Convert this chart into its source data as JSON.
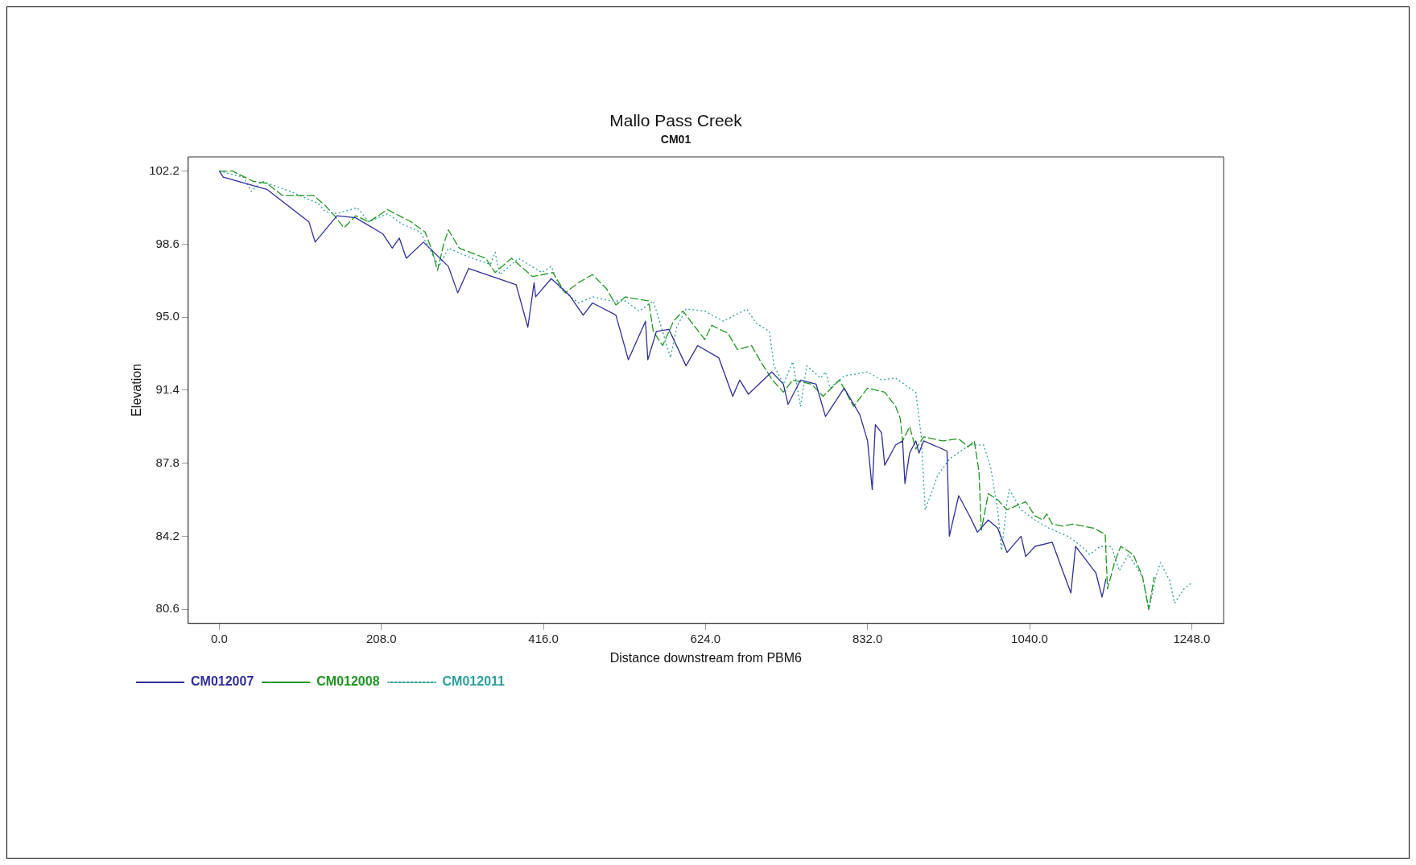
{
  "chart_data": {
    "type": "line",
    "title": "Mallo Pass Creek",
    "subtitle": "CM01",
    "xlabel": "Distance downstream from PBM6",
    "ylabel": "Elevation",
    "xlim": [
      -40,
      1289
    ],
    "ylim": [
      79.9,
      102.9
    ],
    "xticks": [
      {
        "value": 0,
        "label": "0.0"
      },
      {
        "value": 208,
        "label": "208.0"
      },
      {
        "value": 416,
        "label": "416.0"
      },
      {
        "value": 624,
        "label": "624.0"
      },
      {
        "value": 832,
        "label": "832.0"
      },
      {
        "value": 1040,
        "label": "1040.0"
      },
      {
        "value": 1248,
        "label": "1248.0"
      }
    ],
    "yticks": [
      80.6,
      84.2,
      87.8,
      91.4,
      {
        "value": 95,
        "label": "95.0"
      },
      98.6,
      102.2
    ],
    "grid": false,
    "legend": "bottom",
    "marker": "none",
    "series": [
      {
        "name": "CM012007",
        "color": "#2e2e9c",
        "line_style": "solid",
        "x": [
          0,
          5,
          61,
          115,
          123,
          151,
          175,
          210,
          222,
          231,
          240,
          262,
          294,
          306,
          320,
          381,
          396,
          404,
          406,
          426,
          449,
          467,
          479,
          509,
          525,
          547,
          550,
          561,
          577,
          599,
          614,
          641,
          659,
          668,
          679,
          709,
          724,
          730,
          746,
          766,
          778,
          802,
          822,
          832,
          838,
          842,
          850,
          854,
          868,
          877,
          880,
          886,
          894,
          898,
          904,
          934,
          937,
          949,
          963,
          973,
          987,
          999,
          1011,
          1029,
          1035,
          1047,
          1069,
          1093,
          1099,
          1107,
          1125,
          1133,
          1138
        ],
        "values": [
          102.2,
          101.9,
          101.3,
          99.7,
          98.7,
          100.0,
          99.9,
          99.1,
          98.4,
          98.9,
          97.9,
          98.7,
          97.5,
          96.2,
          97.4,
          96.6,
          94.5,
          96.7,
          96.0,
          96.9,
          96.1,
          95.1,
          95.7,
          95.1,
          92.9,
          94.8,
          92.9,
          94.3,
          94.4,
          92.6,
          93.6,
          93.0,
          91.1,
          91.9,
          91.2,
          92.3,
          91.7,
          90.7,
          91.9,
          91.7,
          90.1,
          91.5,
          90.2,
          88.9,
          86.5,
          89.7,
          89.3,
          87.7,
          88.7,
          88.9,
          86.8,
          88.3,
          88.9,
          88.3,
          88.9,
          88.4,
          84.2,
          86.2,
          85.2,
          84.4,
          85.0,
          84.6,
          83.4,
          84.2,
          83.2,
          83.7,
          83.9,
          81.4,
          83.7,
          83.3,
          82.4,
          81.2,
          82.1
        ]
      },
      {
        "name": "CM012008",
        "color": "#1f951f",
        "line_style": "dashed",
        "x": [
          0,
          17,
          43,
          61,
          81,
          94,
          121,
          136,
          148,
          160,
          175,
          192,
          216,
          246,
          264,
          273,
          280,
          288,
          294,
          308,
          342,
          354,
          375,
          402,
          428,
          444,
          461,
          479,
          497,
          509,
          521,
          551,
          557,
          569,
          583,
          595,
          611,
          623,
          632,
          653,
          665,
          683,
          695,
          710,
          724,
          736,
          760,
          775,
          796,
          814,
          832,
          854,
          868,
          874,
          877,
          886,
          894,
          904,
          928,
          949,
          961,
          969,
          975,
          978,
          987,
          999,
          1011,
          1035,
          1047,
          1057,
          1062,
          1069,
          1083,
          1095,
          1109,
          1122,
          1137,
          1140,
          1149,
          1157,
          1173,
          1185,
          1193,
          1200
        ],
        "values": [
          102.2,
          102.2,
          101.7,
          101.6,
          101.0,
          101.0,
          101.0,
          100.5,
          100.0,
          99.4,
          100.0,
          99.7,
          100.3,
          99.7,
          99.2,
          98.3,
          97.3,
          98.6,
          99.3,
          98.4,
          97.9,
          97.2,
          97.9,
          97.0,
          97.2,
          96.2,
          96.7,
          97.1,
          96.4,
          95.6,
          96.0,
          95.8,
          94.3,
          93.6,
          94.8,
          95.3,
          94.5,
          93.9,
          94.6,
          94.2,
          93.4,
          93.6,
          92.8,
          91.9,
          91.3,
          91.9,
          91.7,
          91.1,
          91.9,
          90.6,
          91.5,
          91.3,
          90.6,
          90.0,
          88.9,
          89.6,
          88.5,
          89.1,
          88.9,
          89.0,
          88.6,
          88.9,
          87.4,
          84.5,
          86.3,
          86.0,
          85.5,
          85.9,
          85.2,
          85.0,
          85.3,
          84.8,
          84.7,
          84.8,
          84.7,
          84.6,
          84.3,
          81.6,
          82.9,
          83.7,
          83.3,
          82.2,
          80.6,
          82.2
        ]
      },
      {
        "name": "CM012011",
        "color": "#2a9d9d",
        "line_style": "dotted",
        "x": [
          0,
          31,
          41,
          55,
          91,
          127,
          136,
          151,
          177,
          192,
          216,
          234,
          258,
          282,
          294,
          318,
          348,
          354,
          360,
          384,
          414,
          426,
          438,
          461,
          479,
          503,
          521,
          539,
          557,
          569,
          579,
          587,
          599,
          623,
          647,
          677,
          689,
          706,
          712,
          724,
          736,
          746,
          754,
          772,
          778,
          784,
          802,
          832,
          850,
          868,
          886,
          894,
          901,
          906,
          922,
          937,
          963,
          981,
          990,
          999,
          1004,
          1011,
          1014,
          1029,
          1047,
          1065,
          1089,
          1107,
          1117,
          1131,
          1145,
          1155,
          1167,
          1185,
          1193,
          1202,
          1208,
          1220,
          1226,
          1238,
          1248
        ],
        "values": [
          102.2,
          101.9,
          101.2,
          101.7,
          101.2,
          100.6,
          100.2,
          100.1,
          100.4,
          99.7,
          100.1,
          99.6,
          99.2,
          97.5,
          98.4,
          98.0,
          97.6,
          98.2,
          97.1,
          97.9,
          97.2,
          97.5,
          96.4,
          95.7,
          96.0,
          95.8,
          95.8,
          95.3,
          95.8,
          94.3,
          93.0,
          94.5,
          95.4,
          95.3,
          94.8,
          95.4,
          94.7,
          94.3,
          92.6,
          91.7,
          92.8,
          90.6,
          92.6,
          92.0,
          92.3,
          91.5,
          92.1,
          92.3,
          91.9,
          92.0,
          91.5,
          91.3,
          89.1,
          85.5,
          87.2,
          88.0,
          88.7,
          88.7,
          87.6,
          85.5,
          83.5,
          85.9,
          86.5,
          85.5,
          85.0,
          84.6,
          84.2,
          83.7,
          83.3,
          83.7,
          83.7,
          82.5,
          83.3,
          82.2,
          80.6,
          82.2,
          82.9,
          82.0,
          80.9,
          81.6,
          81.9
        ]
      }
    ]
  }
}
